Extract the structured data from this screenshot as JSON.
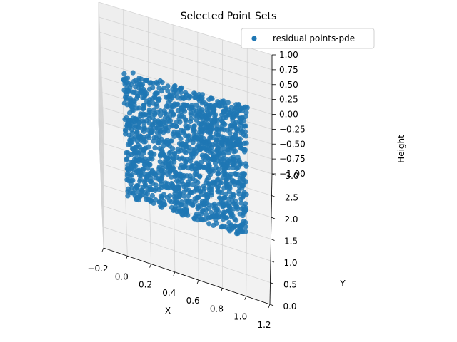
{
  "chart_data": {
    "type": "scatter",
    "title": "Selected Point Sets",
    "xlabel": "X",
    "ylabel": "Y",
    "zlabel": "Height",
    "xlim": [
      -0.2,
      1.2
    ],
    "ylim": [
      0.0,
      3.0
    ],
    "zlim": [
      -1.0,
      1.0
    ],
    "xticks": [
      "−0.2",
      "0.0",
      "0.2",
      "0.4",
      "0.6",
      "0.8",
      "1.0",
      "1.2"
    ],
    "yticks": [
      "0.0",
      "0.5",
      "1.0",
      "1.5",
      "2.0",
      "2.5",
      "3.0"
    ],
    "zticks": [
      "−1.00",
      "−0.75",
      "−0.50",
      "−0.25",
      "0.00",
      "0.25",
      "0.50",
      "0.75",
      "1.00"
    ],
    "grid": true,
    "legend_position": "top-right",
    "series": [
      {
        "name": "residual points-pde",
        "color": "#1f77b4",
        "x_range": [
          0.0,
          1.0
        ],
        "y_range": [
          0.0,
          3.0
        ],
        "z_value": 0.0
      }
    ]
  }
}
